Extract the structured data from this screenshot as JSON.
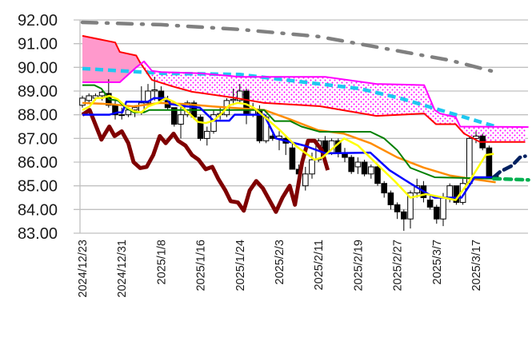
{
  "chart_data": {
    "type": "candlestick-ichimoku",
    "title": "",
    "xlabel": "",
    "ylabel": "",
    "ylim": [
      83,
      92
    ],
    "xlim_index": [
      -0.4,
      68
    ],
    "grid": true,
    "y_ticks": [
      "92.00",
      "91.00",
      "90.00",
      "89.00",
      "88.00",
      "87.00",
      "86.00",
      "85.00",
      "84.00",
      "83.00"
    ],
    "y_tick_values": [
      92,
      91,
      90,
      89,
      88,
      87,
      86,
      85,
      84,
      83
    ],
    "x_ticks": [
      {
        "index": 0,
        "label": "2024/12/23"
      },
      {
        "index": 6,
        "label": "2024/12/31"
      },
      {
        "index": 12,
        "label": "2025/1/8"
      },
      {
        "index": 18,
        "label": "2025/1/16"
      },
      {
        "index": 24,
        "label": "2025/1/24"
      },
      {
        "index": 30,
        "label": "2025/2/3"
      },
      {
        "index": 36,
        "label": "2025/2/11"
      },
      {
        "index": 42,
        "label": "2025/2/19"
      },
      {
        "index": 48,
        "label": "2025/2/27"
      },
      {
        "index": 54,
        "label": "2025/3/7"
      },
      {
        "index": 60,
        "label": "2025/3/17"
      }
    ],
    "candles_ohlc": [
      [
        88.4,
        88.8,
        88.3,
        88.7
      ],
      [
        88.6,
        88.9,
        88.5,
        88.8
      ],
      [
        88.7,
        88.9,
        88.6,
        88.8
      ],
      [
        88.8,
        89.0,
        88.6,
        88.95
      ],
      [
        88.9,
        89.5,
        88.3,
        88.4
      ],
      [
        88.4,
        88.6,
        87.8,
        88.0
      ],
      [
        88.0,
        88.3,
        87.8,
        88.0
      ],
      [
        88.0,
        88.3,
        87.9,
        88.2
      ],
      [
        88.2,
        88.4,
        87.9,
        88.3
      ],
      [
        88.1,
        89.2,
        88.0,
        88.5
      ],
      [
        88.5,
        89.3,
        88.4,
        89.0
      ],
      [
        89.0,
        89.6,
        88.6,
        89.05
      ],
      [
        89.0,
        89.2,
        88.6,
        88.6
      ],
      [
        88.6,
        88.8,
        88.2,
        88.3
      ],
      [
        88.3,
        88.3,
        87.5,
        87.6
      ],
      [
        87.6,
        88.4,
        87.0,
        88.0
      ],
      [
        88.0,
        88.6,
        87.9,
        88.5
      ],
      [
        88.5,
        88.6,
        87.8,
        87.9
      ],
      [
        87.9,
        88.0,
        86.9,
        87.0
      ],
      [
        87.0,
        87.5,
        86.7,
        87.3
      ],
      [
        87.3,
        88.2,
        87.2,
        88.0
      ],
      [
        88.0,
        88.3,
        87.8,
        88.05
      ],
      [
        88.0,
        88.7,
        87.9,
        88.6
      ],
      [
        88.6,
        89.1,
        88.4,
        88.65
      ],
      [
        88.6,
        89.3,
        88.5,
        89.0
      ],
      [
        89.0,
        89.1,
        87.6,
        88.0
      ],
      [
        88.0,
        88.5,
        87.9,
        88.2
      ],
      [
        88.2,
        88.4,
        86.8,
        86.9
      ],
      [
        86.9,
        88.0,
        86.8,
        87.9
      ],
      [
        87.1,
        87.2,
        86.9,
        87.0
      ],
      [
        87.0,
        87.3,
        86.5,
        87.1
      ],
      [
        87.0,
        87.1,
        86.3,
        86.8
      ],
      [
        86.6,
        86.8,
        85.7,
        85.7
      ],
      [
        85.7,
        85.9,
        85.2,
        85.5
      ],
      [
        85.0,
        85.8,
        84.8,
        85.5
      ],
      [
        85.5,
        86.4,
        85.3,
        86.1
      ],
      [
        86.1,
        87.0,
        86.0,
        86.9
      ],
      [
        86.9,
        87.1,
        86.3,
        86.4
      ],
      [
        86.4,
        87.0,
        86.3,
        86.9
      ],
      [
        86.9,
        87.0,
        86.2,
        86.4
      ],
      [
        86.4,
        86.6,
        86.0,
        86.2
      ],
      [
        86.2,
        86.3,
        85.5,
        85.6
      ],
      [
        85.8,
        86.2,
        85.5,
        86.0
      ],
      [
        86.0,
        86.1,
        85.4,
        85.5
      ],
      [
        85.5,
        85.9,
        85.3,
        85.8
      ],
      [
        85.8,
        85.9,
        85.0,
        85.1
      ],
      [
        85.1,
        85.2,
        84.5,
        84.7
      ],
      [
        84.7,
        84.8,
        84.0,
        84.2
      ],
      [
        84.2,
        84.3,
        83.6,
        83.9
      ],
      [
        83.9,
        84.0,
        83.1,
        83.6
      ],
      [
        83.6,
        84.8,
        83.2,
        84.7
      ],
      [
        84.7,
        85.3,
        84.5,
        85.0
      ],
      [
        85.0,
        85.2,
        84.3,
        84.5
      ],
      [
        84.4,
        84.6,
        84.0,
        84.1
      ],
      [
        84.1,
        84.2,
        83.4,
        83.6
      ],
      [
        83.6,
        84.7,
        83.3,
        84.5
      ],
      [
        84.5,
        85.1,
        84.3,
        85.0
      ],
      [
        85.0,
        85.0,
        84.2,
        84.3
      ],
      [
        84.3,
        85.3,
        84.2,
        85.1
      ],
      [
        85.1,
        87.1,
        85.0,
        87.0
      ],
      [
        87.0,
        87.3,
        86.8,
        87.1
      ],
      [
        87.1,
        87.2,
        86.5,
        86.6
      ],
      [
        86.6,
        86.7,
        85.3,
        85.4
      ],
      [
        85.4,
        85.5,
        85.3,
        85.42
      ]
    ],
    "series": [
      {
        "name": "long-term-ma",
        "color": "#808080",
        "style": "dashdot",
        "points": [
          [
            0,
            91.9
          ],
          [
            12,
            91.8
          ],
          [
            24,
            91.6
          ],
          [
            36,
            91.3
          ],
          [
            46,
            90.8
          ],
          [
            56,
            90.3
          ],
          [
            63,
            89.8
          ]
        ]
      },
      {
        "name": "senkou-span-a",
        "color": "#ff0000",
        "style": "solid",
        "points": [
          [
            0,
            91.33
          ],
          [
            5,
            91.05
          ],
          [
            5.7,
            90.65
          ],
          [
            8.2,
            90.5
          ],
          [
            8.8,
            90.2
          ],
          [
            10.6,
            89.47
          ],
          [
            13.7,
            89.2
          ],
          [
            16.7,
            88.97
          ],
          [
            22.8,
            88.73
          ],
          [
            27.7,
            88.5
          ],
          [
            36.2,
            88.36
          ],
          [
            44.8,
            87.95
          ],
          [
            52.1,
            88.05
          ],
          [
            53.9,
            87.6
          ],
          [
            56.9,
            87.6
          ],
          [
            58.2,
            87.2
          ],
          [
            60.6,
            86.85
          ],
          [
            67.5,
            86.85
          ]
        ]
      },
      {
        "name": "senkou-span-b",
        "color": "#ff00ff",
        "style": "solid",
        "points": [
          [
            0,
            89.37
          ],
          [
            5.7,
            89.37
          ],
          [
            8.2,
            90.0
          ],
          [
            9.4,
            90.25
          ],
          [
            10.6,
            89.85
          ],
          [
            12,
            89.8
          ],
          [
            17.9,
            89.75
          ],
          [
            24,
            89.6
          ],
          [
            37,
            89.6
          ],
          [
            44.8,
            89.3
          ],
          [
            52.1,
            89.25
          ],
          [
            53.7,
            88.2
          ],
          [
            54.5,
            88.05
          ],
          [
            56.9,
            87.9
          ],
          [
            57.6,
            87.5
          ],
          [
            68,
            87.48
          ]
        ]
      },
      {
        "name": "mid-term-ma",
        "color": "#1ec8f0",
        "style": "dashed",
        "points": [
          [
            0,
            89.95
          ],
          [
            6,
            89.85
          ],
          [
            12,
            89.75
          ],
          [
            24,
            89.7
          ],
          [
            30,
            89.5
          ],
          [
            42.3,
            89.1
          ],
          [
            48.4,
            88.7
          ],
          [
            54.5,
            88.2
          ],
          [
            59.4,
            87.8
          ],
          [
            63,
            87.5
          ]
        ]
      },
      {
        "name": "chikou-span",
        "color": "#7f0000",
        "style": "thick",
        "points": [
          [
            0,
            88.0
          ],
          [
            1.1,
            88.2
          ],
          [
            2.9,
            86.95
          ],
          [
            4.1,
            87.5
          ],
          [
            4.9,
            87.1
          ],
          [
            6,
            87.3
          ],
          [
            7,
            86.8
          ],
          [
            7.8,
            86.0
          ],
          [
            8.8,
            85.75
          ],
          [
            9.8,
            85.8
          ],
          [
            10.8,
            86.3
          ],
          [
            11.8,
            87.1
          ],
          [
            12.7,
            86.8
          ],
          [
            13.9,
            87.2
          ],
          [
            14.6,
            86.9
          ],
          [
            15.7,
            86.7
          ],
          [
            16.7,
            86.3
          ],
          [
            17.7,
            86.1
          ],
          [
            18.8,
            85.7
          ],
          [
            19.8,
            85.8
          ],
          [
            20.7,
            85.3
          ],
          [
            21.8,
            84.8
          ],
          [
            22.6,
            84.35
          ],
          [
            23.7,
            84.3
          ],
          [
            24.6,
            83.95
          ],
          [
            25.5,
            84.8
          ],
          [
            26.5,
            85.2
          ],
          [
            27.5,
            84.9
          ],
          [
            29.5,
            83.9
          ],
          [
            30.5,
            84.5
          ],
          [
            31.6,
            85.0
          ],
          [
            32.4,
            84.2
          ],
          [
            33.5,
            86.0
          ],
          [
            34.4,
            86.9
          ],
          [
            35.4,
            86.9
          ],
          [
            36.5,
            86.5
          ],
          [
            37.4,
            85.66
          ]
        ]
      },
      {
        "name": "orange-ma",
        "color": "#ff8c00",
        "style": "solid",
        "points": [
          [
            0,
            88.5
          ],
          [
            4.1,
            88.45
          ],
          [
            7.8,
            88.35
          ],
          [
            11.8,
            88.5
          ],
          [
            15.9,
            88.45
          ],
          [
            19.8,
            88.35
          ],
          [
            27.7,
            88.2
          ],
          [
            31.7,
            87.8
          ],
          [
            35.9,
            87.35
          ],
          [
            39.9,
            87.2
          ],
          [
            43.9,
            86.8
          ],
          [
            48,
            86.2
          ],
          [
            52,
            85.77
          ],
          [
            56.1,
            85.43
          ],
          [
            60.2,
            85.26
          ],
          [
            63,
            85.15
          ]
        ]
      },
      {
        "name": "kijun-sen",
        "color": "#008000",
        "style": "solid",
        "points": [
          [
            0,
            89.25
          ],
          [
            1.8,
            89.25
          ],
          [
            2.9,
            89.1
          ],
          [
            4.1,
            88.65
          ],
          [
            5.4,
            88.6
          ],
          [
            6.6,
            88.3
          ],
          [
            7.8,
            88.1
          ],
          [
            9.4,
            88.1
          ],
          [
            10.2,
            88.2
          ],
          [
            27.7,
            88.2
          ],
          [
            29.3,
            87.73
          ],
          [
            31.7,
            87.73
          ],
          [
            33.4,
            87.5
          ],
          [
            36.2,
            87.28
          ],
          [
            43.9,
            87.28
          ],
          [
            46,
            87.0
          ],
          [
            48,
            86.5
          ],
          [
            50,
            85.76
          ],
          [
            53.7,
            85.36
          ],
          [
            62.7,
            85.3
          ]
        ]
      },
      {
        "name": "tenkan-sen",
        "color": "#0000ff",
        "style": "solid",
        "points": [
          [
            0,
            88.0
          ],
          [
            4.1,
            88.0
          ],
          [
            5.4,
            88.1
          ],
          [
            6.1,
            88.1
          ],
          [
            6.7,
            88.55
          ],
          [
            10,
            88.55
          ],
          [
            10.9,
            88.7
          ],
          [
            12.8,
            88.7
          ],
          [
            13.4,
            88.45
          ],
          [
            15.9,
            88.35
          ],
          [
            17.9,
            88.3
          ],
          [
            20,
            87.75
          ],
          [
            22.4,
            87.75
          ],
          [
            23.2,
            88.0
          ],
          [
            27.7,
            88.0
          ],
          [
            29.5,
            87.0
          ],
          [
            33.8,
            86.7
          ],
          [
            37.1,
            86.37
          ],
          [
            43.9,
            86.4
          ],
          [
            46.8,
            85.66
          ],
          [
            50,
            85.1
          ],
          [
            52.1,
            84.75
          ],
          [
            53.7,
            84.5
          ],
          [
            57.8,
            84.5
          ],
          [
            59.8,
            85.36
          ],
          [
            62.7,
            85.36
          ]
        ]
      },
      {
        "name": "short-term-ma",
        "color": "#ffff00",
        "style": "solid",
        "points": [
          [
            0,
            88.2
          ],
          [
            1.1,
            88.35
          ],
          [
            2.1,
            88.7
          ],
          [
            3,
            88.7
          ],
          [
            4.1,
            88.8
          ],
          [
            5.4,
            88.65
          ],
          [
            6.6,
            88.35
          ],
          [
            7.8,
            88.15
          ],
          [
            9,
            88.1
          ],
          [
            10,
            88.35
          ],
          [
            11.5,
            88.5
          ],
          [
            12.7,
            88.7
          ],
          [
            13.9,
            88.55
          ],
          [
            15.1,
            88.35
          ],
          [
            16.3,
            88.05
          ],
          [
            17.6,
            87.7
          ],
          [
            18.8,
            87.65
          ],
          [
            20,
            87.75
          ],
          [
            21.2,
            88.05
          ],
          [
            22.4,
            88.4
          ],
          [
            23.7,
            88.5
          ],
          [
            24.9,
            88.45
          ],
          [
            26.1,
            88.3
          ],
          [
            27.4,
            88.0
          ],
          [
            30.1,
            87.35
          ],
          [
            32.6,
            86.67
          ],
          [
            35.4,
            86.1
          ],
          [
            36.6,
            86.2
          ],
          [
            39.9,
            87.0
          ],
          [
            42,
            86.7
          ],
          [
            45.1,
            85.86
          ],
          [
            47.6,
            85.2
          ],
          [
            50,
            84.5
          ],
          [
            52.4,
            84.65
          ],
          [
            56.9,
            84.4
          ],
          [
            59,
            85.2
          ],
          [
            61.5,
            86.3
          ],
          [
            62.7,
            86.35
          ]
        ]
      },
      {
        "name": "tenkan-forecast",
        "color": "#002060",
        "style": "dashed",
        "points": [
          [
            62.7,
            85.36
          ],
          [
            63.7,
            85.6
          ],
          [
            65.5,
            85.85
          ],
          [
            66.7,
            86.2
          ],
          [
            67.5,
            86.25
          ]
        ]
      },
      {
        "name": "kijun-forecast",
        "color": "#00b050",
        "style": "dotted",
        "points": [
          [
            62.7,
            85.3
          ],
          [
            68,
            85.25
          ]
        ]
      }
    ],
    "cloud": {
      "upper_series": "senkou-span-a",
      "lower_series": "senkou-span-b",
      "bullish_fill": "#ff99cc",
      "bearish_dots": "#ff00ff"
    }
  }
}
